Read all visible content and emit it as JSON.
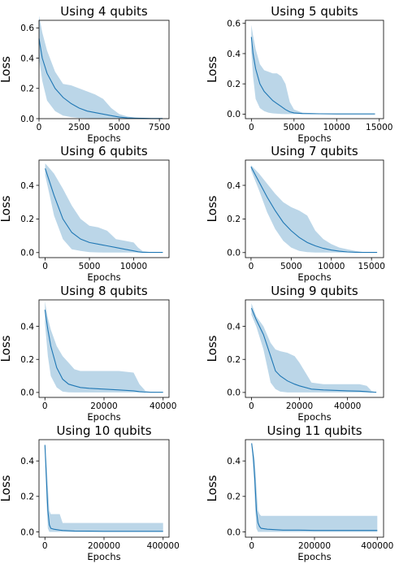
{
  "chart_data": [
    {
      "type": "line",
      "title": "Using 4 qubits",
      "xlabel": "Epochs",
      "ylabel": "Loss",
      "xlim": [
        0,
        8100
      ],
      "ylim": [
        0,
        0.65
      ],
      "xticks": [
        0,
        2500,
        5000,
        7500
      ],
      "xtick_labels": [
        "0",
        "2500",
        "5000",
        "7500"
      ],
      "yticks": [
        0.0,
        0.2,
        0.4,
        0.6
      ],
      "ytick_labels": [
        "0.0",
        "0.2",
        "0.4",
        "0.6"
      ],
      "series": [
        {
          "x": [
            0,
            200,
            500,
            1000,
            1500,
            2000,
            2500,
            3000,
            3500,
            4000,
            4500,
            5000,
            5500,
            6000,
            6500,
            7000,
            7700
          ],
          "mean": [
            0.53,
            0.4,
            0.3,
            0.2,
            0.14,
            0.1,
            0.07,
            0.05,
            0.04,
            0.03,
            0.02,
            0.01,
            0.005,
            0.003,
            0.002,
            0.001,
            0.001
          ],
          "upper": [
            0.68,
            0.57,
            0.45,
            0.31,
            0.23,
            0.22,
            0.2,
            0.18,
            0.16,
            0.13,
            0.07,
            0.03,
            0.015,
            0.007,
            0.004,
            0.002,
            0.001
          ],
          "lower": [
            0.4,
            0.25,
            0.12,
            0.05,
            0.02,
            0.01,
            0.005,
            0.003,
            0.002,
            0.001,
            0.0,
            0.0,
            0.0,
            0.0,
            0.0,
            0.0,
            0.0
          ]
        }
      ]
    },
    {
      "type": "line",
      "title": "Using 5 qubits",
      "xlabel": "Epochs",
      "ylabel": "Loss",
      "xlim": [
        -700,
        15500
      ],
      "ylim": [
        -0.03,
        0.62
      ],
      "xticks": [
        0,
        5000,
        10000,
        15000
      ],
      "xtick_labels": [
        "0",
        "5000",
        "10000",
        "15000"
      ],
      "yticks": [
        0.0,
        0.2,
        0.4,
        0.6
      ],
      "ytick_labels": [
        "0.0",
        "0.2",
        "0.4",
        "0.6"
      ],
      "series": [
        {
          "x": [
            0,
            200,
            500,
            1000,
            1500,
            2000,
            2500,
            3000,
            3500,
            4000,
            4500,
            5000,
            6000,
            8000,
            10000,
            12000,
            14500
          ],
          "mean": [
            0.51,
            0.4,
            0.3,
            0.2,
            0.15,
            0.12,
            0.09,
            0.07,
            0.05,
            0.03,
            0.015,
            0.008,
            0.004,
            0.002,
            0.001,
            0.001,
            0.001
          ],
          "upper": [
            0.59,
            0.52,
            0.43,
            0.33,
            0.29,
            0.28,
            0.27,
            0.27,
            0.25,
            0.2,
            0.08,
            0.03,
            0.01,
            0.004,
            0.002,
            0.001,
            0.001
          ],
          "lower": [
            0.41,
            0.25,
            0.1,
            0.04,
            0.02,
            0.01,
            0.005,
            0.003,
            0.001,
            0.0,
            0.0,
            0.0,
            0.0,
            0.0,
            0.0,
            0.0,
            0.0
          ]
        }
      ]
    },
    {
      "type": "line",
      "title": "Using 6 qubits",
      "xlabel": "Epochs",
      "ylabel": "Loss",
      "xlim": [
        -700,
        14000
      ],
      "ylim": [
        -0.03,
        0.55
      ],
      "xticks": [
        0,
        5000,
        10000
      ],
      "xtick_labels": [
        "0",
        "5000",
        "10000"
      ],
      "yticks": [
        0.0,
        0.2,
        0.4
      ],
      "ytick_labels": [
        "0.0",
        "0.2",
        "0.4"
      ],
      "series": [
        {
          "x": [
            0,
            500,
            1000,
            2000,
            3000,
            4000,
            5000,
            6000,
            7000,
            8000,
            9000,
            10000,
            10500,
            11000,
            12000,
            13300
          ],
          "mean": [
            0.5,
            0.42,
            0.34,
            0.2,
            0.12,
            0.08,
            0.06,
            0.05,
            0.04,
            0.03,
            0.02,
            0.01,
            0.005,
            0.002,
            0.001,
            0.001
          ],
          "upper": [
            0.53,
            0.5,
            0.47,
            0.38,
            0.28,
            0.2,
            0.16,
            0.15,
            0.13,
            0.08,
            0.07,
            0.06,
            0.03,
            0.01,
            0.002,
            0.001
          ],
          "lower": [
            0.46,
            0.34,
            0.22,
            0.08,
            0.02,
            0.01,
            0.003,
            0.001,
            0.0,
            0.0,
            0.0,
            0.0,
            0.0,
            0.0,
            0.0,
            0.0
          ]
        }
      ]
    },
    {
      "type": "line",
      "title": "Using 7 qubits",
      "xlabel": "Epochs",
      "ylabel": "Loss",
      "xlim": [
        -700,
        16500
      ],
      "ylim": [
        -0.03,
        0.55
      ],
      "xticks": [
        0,
        5000,
        10000,
        15000
      ],
      "xtick_labels": [
        "0",
        "5000",
        "10000",
        "15000"
      ],
      "yticks": [
        0.0,
        0.2,
        0.4
      ],
      "ytick_labels": [
        "0.0",
        "0.2",
        "0.4"
      ],
      "series": [
        {
          "x": [
            0,
            1000,
            2000,
            3000,
            4000,
            5000,
            6000,
            7000,
            8000,
            9000,
            10000,
            11000,
            12000,
            13000,
            14000,
            15700
          ],
          "mean": [
            0.51,
            0.42,
            0.33,
            0.25,
            0.18,
            0.13,
            0.09,
            0.06,
            0.04,
            0.025,
            0.015,
            0.008,
            0.004,
            0.002,
            0.001,
            0.001
          ],
          "upper": [
            0.52,
            0.47,
            0.41,
            0.35,
            0.3,
            0.27,
            0.25,
            0.22,
            0.13,
            0.08,
            0.05,
            0.03,
            0.02,
            0.01,
            0.003,
            0.001
          ],
          "lower": [
            0.49,
            0.37,
            0.24,
            0.14,
            0.07,
            0.03,
            0.01,
            0.003,
            0.0,
            0.0,
            0.0,
            0.0,
            0.0,
            0.0,
            0.0,
            0.0
          ]
        }
      ]
    },
    {
      "type": "line",
      "title": "Using 8 qubits",
      "xlabel": "Epochs",
      "ylabel": "Loss",
      "xlim": [
        -2000,
        42000
      ],
      "ylim": [
        -0.03,
        0.56
      ],
      "xticks": [
        0,
        20000,
        40000
      ],
      "xtick_labels": [
        "0",
        "20000",
        "40000"
      ],
      "yticks": [
        0.0,
        0.2,
        0.4
      ],
      "ytick_labels": [
        "0.0",
        "0.2",
        "0.4"
      ],
      "series": [
        {
          "x": [
            0,
            1000,
            2000,
            4000,
            6000,
            8000,
            10000,
            12000,
            15000,
            20000,
            25000,
            30000,
            32000,
            34000,
            36000,
            40000
          ],
          "mean": [
            0.5,
            0.38,
            0.28,
            0.15,
            0.08,
            0.05,
            0.04,
            0.03,
            0.025,
            0.02,
            0.015,
            0.01,
            0.005,
            0.002,
            0.001,
            0.001
          ],
          "upper": [
            0.55,
            0.45,
            0.38,
            0.28,
            0.22,
            0.18,
            0.14,
            0.13,
            0.13,
            0.13,
            0.13,
            0.12,
            0.05,
            0.01,
            0.003,
            0.001
          ],
          "lower": [
            0.42,
            0.22,
            0.1,
            0.03,
            0.005,
            0.001,
            0.0,
            0.0,
            0.0,
            0.0,
            0.0,
            0.0,
            0.0,
            0.0,
            0.0,
            0.0
          ]
        }
      ]
    },
    {
      "type": "line",
      "title": "Using 9 qubits",
      "xlabel": "Epochs",
      "ylabel": "Loss",
      "xlim": [
        -2500,
        55000
      ],
      "ylim": [
        -0.03,
        0.56
      ],
      "xticks": [
        0,
        20000,
        40000
      ],
      "xtick_labels": [
        "0",
        "20000",
        "40000"
      ],
      "yticks": [
        0.0,
        0.2,
        0.4
      ],
      "ytick_labels": [
        "0.0",
        "0.2",
        "0.4"
      ],
      "series": [
        {
          "x": [
            0,
            2000,
            5000,
            8000,
            10000,
            12000,
            15000,
            18000,
            20000,
            25000,
            30000,
            40000,
            45000,
            48000,
            50000,
            52000
          ],
          "mean": [
            0.51,
            0.44,
            0.35,
            0.22,
            0.13,
            0.1,
            0.07,
            0.05,
            0.04,
            0.02,
            0.015,
            0.01,
            0.008,
            0.005,
            0.002,
            0.001
          ],
          "upper": [
            0.54,
            0.46,
            0.4,
            0.3,
            0.26,
            0.25,
            0.24,
            0.22,
            0.18,
            0.06,
            0.05,
            0.05,
            0.05,
            0.04,
            0.01,
            0.001
          ],
          "lower": [
            0.47,
            0.4,
            0.26,
            0.06,
            0.02,
            0.005,
            0.0,
            0.0,
            0.0,
            0.0,
            0.0,
            0.0,
            0.0,
            0.0,
            0.0,
            0.0
          ]
        }
      ]
    },
    {
      "type": "line",
      "title": "Using 10 qubits",
      "xlabel": "Epochs",
      "ylabel": "Loss",
      "xlim": [
        -20000,
        420000
      ],
      "ylim": [
        -0.03,
        0.52
      ],
      "xticks": [
        0,
        200000,
        400000
      ],
      "xtick_labels": [
        "0",
        "200000",
        "400000"
      ],
      "yticks": [
        0.0,
        0.2,
        0.4
      ],
      "ytick_labels": [
        "0.0",
        "0.2",
        "0.4"
      ],
      "series": [
        {
          "x": [
            0,
            5000,
            10000,
            15000,
            20000,
            30000,
            50000,
            60000,
            100000,
            150000,
            200000,
            400000
          ],
          "mean": [
            0.49,
            0.3,
            0.12,
            0.04,
            0.02,
            0.015,
            0.01,
            0.008,
            0.005,
            0.004,
            0.003,
            0.003
          ],
          "upper": [
            0.5,
            0.4,
            0.25,
            0.12,
            0.1,
            0.1,
            0.1,
            0.05,
            0.05,
            0.05,
            0.05,
            0.05
          ],
          "lower": [
            0.47,
            0.18,
            0.02,
            0.0,
            0.0,
            0.0,
            0.0,
            0.0,
            0.0,
            0.0,
            0.0,
            0.0
          ]
        }
      ]
    },
    {
      "type": "line",
      "title": "Using 11 qubits",
      "xlabel": "Epochs",
      "ylabel": "Loss",
      "xlim": [
        -20000,
        420000
      ],
      "ylim": [
        -0.03,
        0.52
      ],
      "xticks": [
        0,
        200000,
        400000
      ],
      "xtick_labels": [
        "0",
        "200000",
        "400000"
      ],
      "yticks": [
        0.0,
        0.2,
        0.4
      ],
      "ytick_labels": [
        "0.0",
        "0.2",
        "0.4"
      ],
      "series": [
        {
          "x": [
            0,
            5000,
            10000,
            15000,
            20000,
            25000,
            30000,
            50000,
            100000,
            150000,
            200000,
            400000
          ],
          "mean": [
            0.5,
            0.42,
            0.3,
            0.12,
            0.05,
            0.03,
            0.02,
            0.015,
            0.01,
            0.01,
            0.008,
            0.008
          ],
          "upper": [
            0.5,
            0.46,
            0.4,
            0.25,
            0.12,
            0.1,
            0.09,
            0.09,
            0.09,
            0.09,
            0.09,
            0.09
          ],
          "lower": [
            0.49,
            0.36,
            0.18,
            0.02,
            0.0,
            0.0,
            0.0,
            0.0,
            0.0,
            0.0,
            0.0,
            0.0
          ]
        }
      ]
    }
  ]
}
